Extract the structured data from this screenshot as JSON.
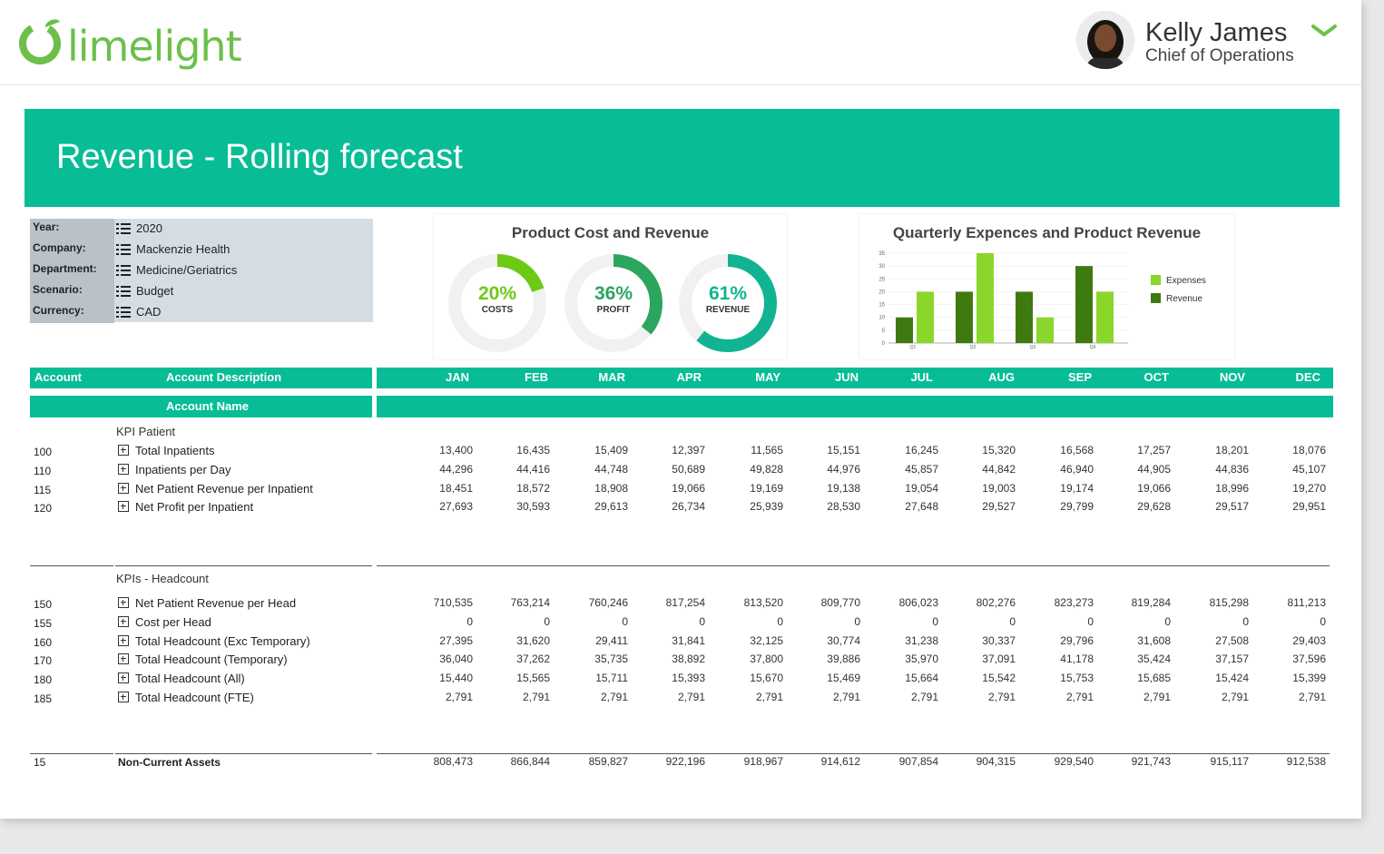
{
  "header": {
    "logo_text": "limelight",
    "user_name": "Kelly James",
    "user_role": "Chief of Operations"
  },
  "banner": {
    "title": "Revenue - Rolling forecast"
  },
  "filters": [
    {
      "label": "Year:",
      "value": "2020"
    },
    {
      "label": "Company:",
      "value": "Mackenzie Health"
    },
    {
      "label": "Department:",
      "value": "Medicine/Geriatrics"
    },
    {
      "label": "Scenario:",
      "value": "Budget"
    },
    {
      "label": "Currency:",
      "value": "CAD"
    }
  ],
  "donut_panel": {
    "title": "Product Cost and Revenue",
    "donuts": [
      {
        "pct": "20%",
        "label": "COSTS",
        "value": 20,
        "color": "#6cc916"
      },
      {
        "pct": "36%",
        "label": "PROFIT",
        "value": 36,
        "color": "#2ca55e"
      },
      {
        "pct": "61%",
        "label": "REVENUE",
        "value": 61,
        "color": "#10b490"
      }
    ]
  },
  "chart_data": {
    "type": "bar",
    "title": "Quarterly Expences and Product Revenue",
    "categories": [
      "Q1",
      "Q2",
      "Q3",
      "Q4"
    ],
    "series": [
      {
        "name": "Revenue",
        "values": [
          10,
          20,
          20,
          30
        ],
        "color": "#3f7a10"
      },
      {
        "name": "Expenses",
        "values": [
          20,
          35,
          10,
          20
        ],
        "color": "#8ad62b"
      }
    ],
    "yticks": [
      0,
      5,
      10,
      15,
      20,
      25,
      30,
      35
    ],
    "ylim": [
      0,
      35
    ],
    "legend": "right"
  },
  "table": {
    "header1": {
      "account": "Account",
      "description": "Account Description"
    },
    "header2": {
      "name": "Account Name"
    },
    "months": [
      "JAN",
      "FEB",
      "MAR",
      "APR",
      "MAY",
      "JUN",
      "JUL",
      "AUG",
      "SEP",
      "OCT",
      "NOV",
      "DEC"
    ],
    "sections": [
      {
        "title": "KPI Patient",
        "rows": [
          {
            "account": "100",
            "name": "Total Inpatients",
            "values": [
              "13,400",
              "16,435",
              "15,409",
              "12,397",
              "11,565",
              "15,151",
              "16,245",
              "15,320",
              "16,568",
              "17,257",
              "18,201",
              "18,076"
            ]
          },
          {
            "account": "110",
            "name": "Inpatients per Day",
            "values": [
              "44,296",
              "44,416",
              "44,748",
              "50,689",
              "49,828",
              "44,976",
              "45,857",
              "44,842",
              "46,940",
              "44,905",
              "44,836",
              "45,107"
            ]
          },
          {
            "account": "115",
            "name": "Net Patient Revenue per Inpatient",
            "values": [
              "18,451",
              "18,572",
              "18,908",
              "19,066",
              "19,169",
              "19,138",
              "19,054",
              "19,003",
              "19,174",
              "19,066",
              "18,996",
              "19,270"
            ]
          },
          {
            "account": "120",
            "name": "Net Profit per Inpatient",
            "values": [
              "27,693",
              "30,593",
              "29,613",
              "26,734",
              "25,939",
              "28,530",
              "27,648",
              "29,527",
              "29,799",
              "29,628",
              "29,517",
              "29,951"
            ]
          }
        ]
      },
      {
        "title": "KPIs - Headcount",
        "rows": [
          {
            "account": "150",
            "name": "Net Patient Revenue per Head",
            "values": [
              "710,535",
              "763,214",
              "760,246",
              "817,254",
              "813,520",
              "809,770",
              "806,023",
              "802,276",
              "823,273",
              "819,284",
              "815,298",
              "811,213"
            ]
          },
          {
            "account": "155",
            "name": "Cost per Head",
            "values": [
              "0",
              "0",
              "0",
              "0",
              "0",
              "0",
              "0",
              "0",
              "0",
              "0",
              "0",
              "0"
            ]
          },
          {
            "account": "160",
            "name": "Total Headcount (Exc Temporary)",
            "values": [
              "27,395",
              "31,620",
              "29,411",
              "31,841",
              "32,125",
              "30,774",
              "31,238",
              "30,337",
              "29,796",
              "31,608",
              "27,508",
              "29,403"
            ]
          },
          {
            "account": "170",
            "name": "Total Headcount (Temporary)",
            "values": [
              "36,040",
              "37,262",
              "35,735",
              "38,892",
              "37,800",
              "39,886",
              "35,970",
              "37,091",
              "41,178",
              "35,424",
              "37,157",
              "37,596"
            ]
          },
          {
            "account": "180",
            "name": "Total Headcount (All)",
            "values": [
              "15,440",
              "15,565",
              "15,711",
              "15,393",
              "15,670",
              "15,469",
              "15,664",
              "15,542",
              "15,753",
              "15,685",
              "15,424",
              "15,399"
            ]
          },
          {
            "account": "185",
            "name": "Total Headcount (FTE)",
            "values": [
              "2,791",
              "2,791",
              "2,791",
              "2,791",
              "2,791",
              "2,791",
              "2,791",
              "2,791",
              "2,791",
              "2,791",
              "2,791",
              "2,791"
            ]
          }
        ]
      }
    ],
    "total_row": {
      "account": "15",
      "name": "Non-Current Assets",
      "values": [
        "808,473",
        "866,844",
        "859,827",
        "922,196",
        "918,967",
        "914,612",
        "907,854",
        "904,315",
        "929,540",
        "921,743",
        "915,117",
        "912,538"
      ]
    }
  }
}
